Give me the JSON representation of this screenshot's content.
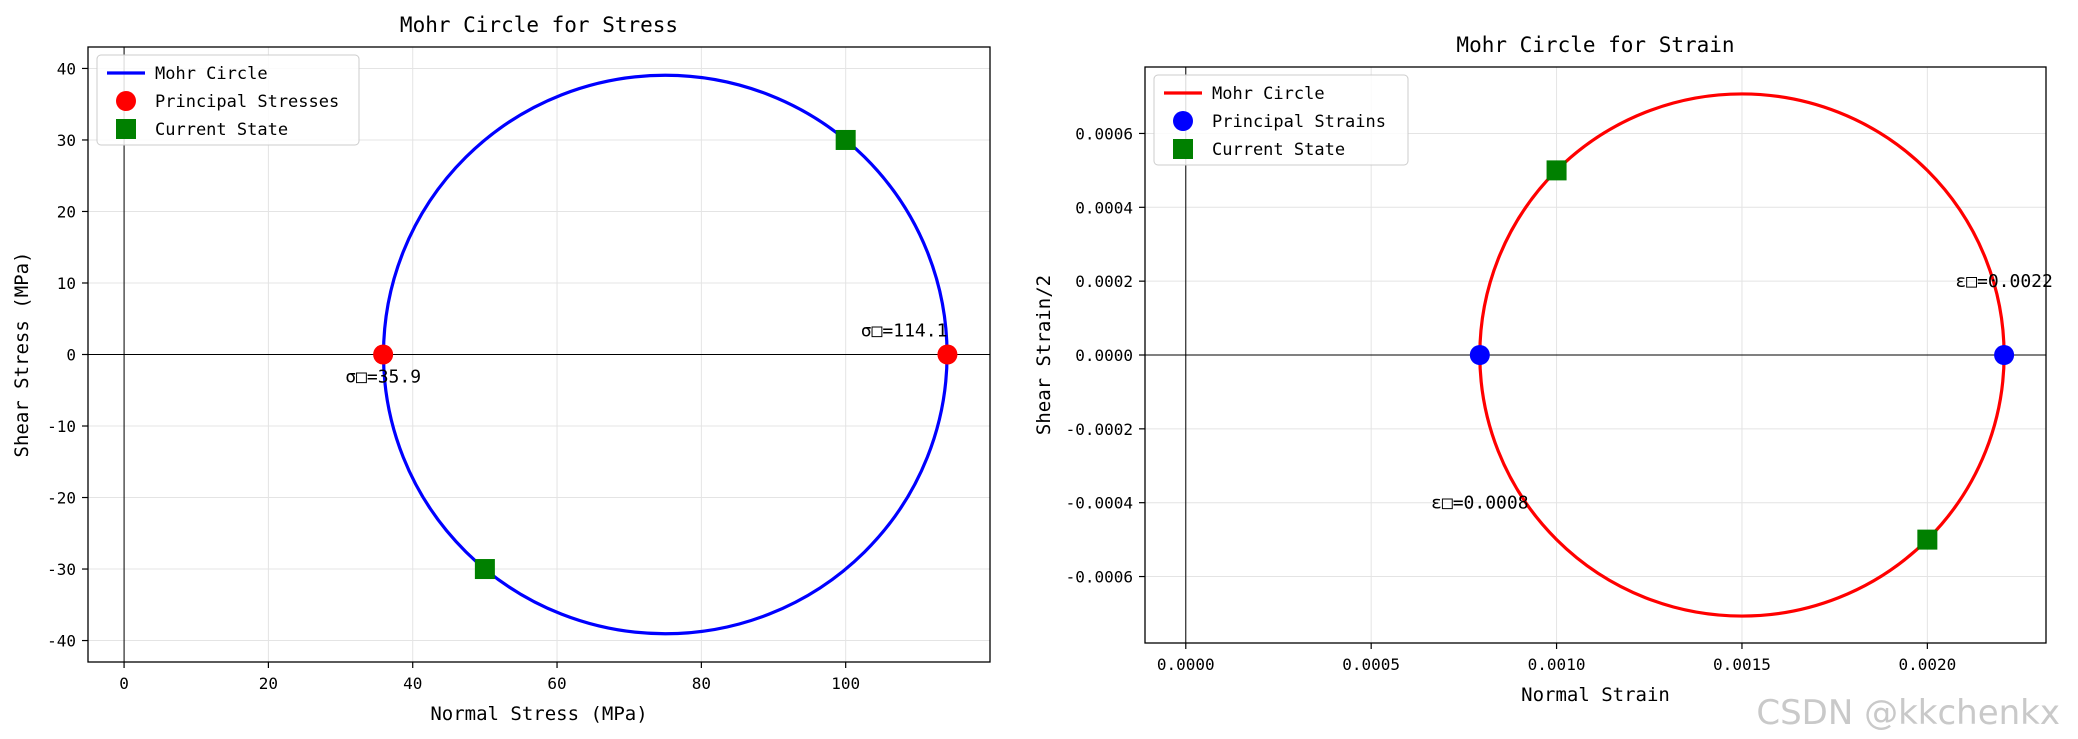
{
  "watermark": "CSDN @kkchenkx",
  "chart_data": [
    {
      "type": "line",
      "title": "Mohr Circle for Stress",
      "xlabel": "Normal Stress (MPa)",
      "ylabel": "Shear Stress (MPa)",
      "xlim": [
        -5,
        120
      ],
      "ylim": [
        -43,
        43
      ],
      "xticks": [
        0,
        20,
        40,
        60,
        80,
        100
      ],
      "yticks": [
        -40,
        -30,
        -20,
        -10,
        0,
        10,
        20,
        30,
        40
      ],
      "tick_decimals": 0,
      "grid": true,
      "legend": "top-left",
      "circle": {
        "name": "Mohr Circle",
        "center": 75,
        "radius": 39.05,
        "color": "#0000ff"
      },
      "principal": {
        "name": "Principal Stresses",
        "x": [
          35.9,
          114.1
        ],
        "y": [
          0,
          0
        ],
        "color": "#ff0000"
      },
      "current": {
        "name": "Current State",
        "x": [
          100,
          50
        ],
        "y": [
          30,
          -30
        ],
        "color": "#008000"
      },
      "annotations": [
        {
          "text": "σ□=114.1",
          "x": 114.1,
          "y": 0,
          "anchor": "end",
          "dx": 0,
          "dy": -18
        },
        {
          "text": "σ□=35.9",
          "x": 35.9,
          "y": 0,
          "anchor": "middle",
          "dx": 0,
          "dy": 28
        }
      ]
    },
    {
      "type": "line",
      "title": "Mohr Circle for Strain",
      "xlabel": "Normal Strain",
      "ylabel": "Shear Strain/2",
      "xlim": [
        -0.00011,
        0.00232
      ],
      "ylim": [
        -0.00078,
        0.00078
      ],
      "xticks": [
        0.0,
        0.0005,
        0.001,
        0.0015,
        0.002
      ],
      "yticks": [
        -0.0006,
        -0.0004,
        -0.0002,
        0.0,
        0.0002,
        0.0004,
        0.0006
      ],
      "tick_decimals": 4,
      "grid": true,
      "legend": "top-left",
      "circle": {
        "name": "Mohr Circle",
        "center": 0.0015,
        "radius": 0.000707,
        "color": "#ff0000"
      },
      "principal": {
        "name": "Principal Strains",
        "x": [
          0.000793,
          0.002207
        ],
        "y": [
          0,
          0
        ],
        "color": "#0000ff"
      },
      "current": {
        "name": "Current State",
        "x": [
          0.001,
          0.002
        ],
        "y": [
          0.0005,
          -0.0005
        ],
        "color": "#008000"
      },
      "annotations": [
        {
          "text": "ε□=0.0022",
          "x": 0.002207,
          "y": 0.0002,
          "anchor": "middle",
          "dx": 0,
          "dy": 6
        },
        {
          "text": "ε□=0.0008",
          "x": 0.000793,
          "y": -0.0004,
          "anchor": "middle",
          "dx": 0,
          "dy": 6
        }
      ]
    }
  ]
}
